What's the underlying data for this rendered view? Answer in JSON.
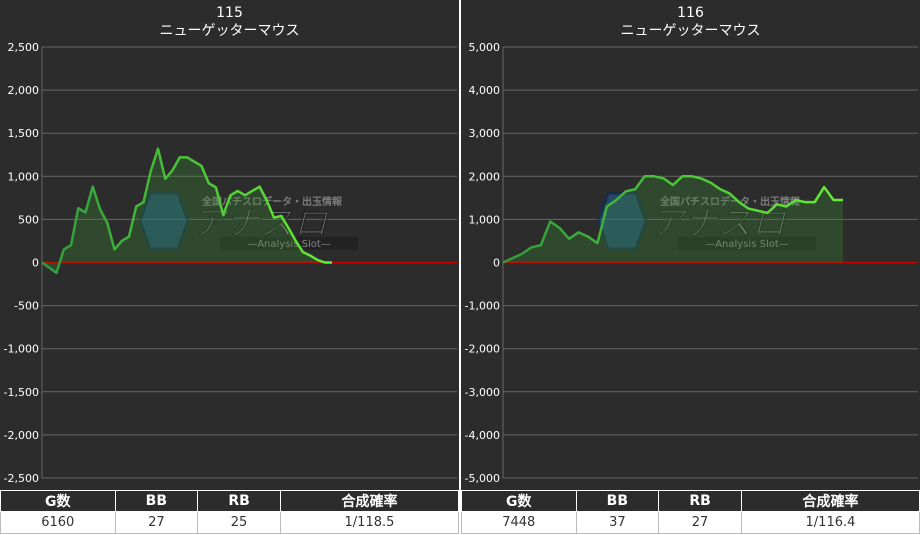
{
  "panels": [
    {
      "number": "115",
      "machine": "ニューゲッターマウス",
      "stats": {
        "headers": [
          "G数",
          "BB",
          "RB",
          "合成確率"
        ],
        "values": [
          "6160",
          "27",
          "25",
          "1/118.5"
        ]
      }
    },
    {
      "number": "116",
      "machine": "ニューゲッターマウス",
      "stats": {
        "headers": [
          "G数",
          "BB",
          "RB",
          "合成確率"
        ],
        "values": [
          "7448",
          "37",
          "27",
          "1/116.4"
        ]
      }
    }
  ],
  "watermark": {
    "main": "アナスロ",
    "sub": "—Analysis Slot—",
    "top": "全国パチスロデータ・出玉情報"
  },
  "colors": {
    "background": "#2c2c2c",
    "grid": "#666666",
    "zero_line": "#cc0000",
    "series_start": "#2f9a3c",
    "series_end": "#66ee33",
    "axis_text": "#ffffff"
  },
  "chart_data": [
    {
      "type": "area",
      "title": "115",
      "subtitle": "ニューゲッターマウス",
      "ylim": [
        -2500,
        2500
      ],
      "yticks": [
        2500,
        2000,
        1500,
        1000,
        500,
        0,
        -500,
        -1000,
        -1500,
        -2000,
        -2500
      ],
      "ytick_labels": [
        "2,500",
        "2,000",
        "1,500",
        "1,000",
        "500",
        "0",
        "-500",
        "-1,000",
        "-1,500",
        "-2,000",
        "-2,500"
      ],
      "grid": true,
      "series": [
        {
          "x": [
            0,
            1,
            2,
            3,
            4,
            5,
            6,
            7,
            8,
            9,
            10,
            11,
            12,
            13,
            14,
            15,
            16,
            17,
            18,
            19,
            20,
            21,
            22,
            23,
            24,
            25,
            26,
            27,
            28,
            29,
            30,
            31,
            32,
            33,
            34,
            35,
            36,
            37,
            38,
            39,
            40
          ],
          "y": [
            0,
            -60,
            -120,
            150,
            200,
            630,
            580,
            880,
            620,
            460,
            150,
            250,
            300,
            650,
            700,
            1060,
            1320,
            970,
            1070,
            1220,
            1220,
            1170,
            1120,
            920,
            870,
            550,
            780,
            830,
            780,
            830,
            880,
            720,
            520,
            540,
            400,
            250,
            120,
            80,
            30,
            0,
            0
          ]
        }
      ],
      "x_visible_points": 33
    },
    {
      "type": "area",
      "title": "116",
      "subtitle": "ニューゲッターマウス",
      "ylim": [
        -5000,
        5000
      ],
      "yticks": [
        5000,
        4000,
        3000,
        2000,
        1000,
        0,
        -1000,
        -2000,
        -3000,
        -4000,
        -5000
      ],
      "ytick_labels": [
        "5,000",
        "4,000",
        "3,000",
        "2,000",
        "1,000",
        "0",
        "-1,000",
        "-2,000",
        "-3,000",
        "-4,000",
        "-5,000"
      ],
      "grid": true,
      "series": [
        {
          "x": [
            0,
            1,
            2,
            3,
            4,
            5,
            6,
            7,
            8,
            9,
            10,
            11,
            12,
            13,
            14,
            15,
            16,
            17,
            18,
            19,
            20,
            21,
            22,
            23,
            24,
            25,
            26,
            27,
            28,
            29,
            30,
            31,
            32,
            33,
            34,
            35,
            36
          ],
          "y": [
            0,
            100,
            200,
            350,
            400,
            950,
            800,
            550,
            700,
            600,
            450,
            1300,
            1450,
            1650,
            1700,
            2000,
            2000,
            1950,
            1800,
            2000,
            2000,
            1950,
            1850,
            1700,
            1600,
            1400,
            1250,
            1200,
            1150,
            1350,
            1300,
            1450,
            1400,
            1400,
            1750,
            1450,
            1450
          ]
        }
      ],
      "x_visible_points": 36
    }
  ]
}
